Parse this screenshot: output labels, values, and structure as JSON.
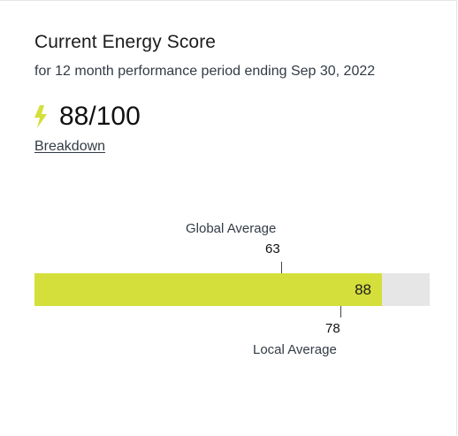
{
  "card": {
    "title": "Current Energy Score",
    "subtitle": "for 12 month performance period ending Sep 30, 2022",
    "score_text": "88/100",
    "score_icon": "lightning-bolt-icon",
    "breakdown_link": "Breakdown"
  },
  "score_bar": {
    "score": 88,
    "max": 100,
    "score_label": "88",
    "global_average": {
      "label": "Global Average",
      "value": 63,
      "value_text": "63"
    },
    "local_average": {
      "label": "Local Average",
      "value": 78,
      "value_text": "78"
    }
  },
  "colors": {
    "accent": "#d4df3b",
    "track": "#e6e6e6",
    "text_primary": "#1c1c1c",
    "text_secondary": "#333b45"
  }
}
